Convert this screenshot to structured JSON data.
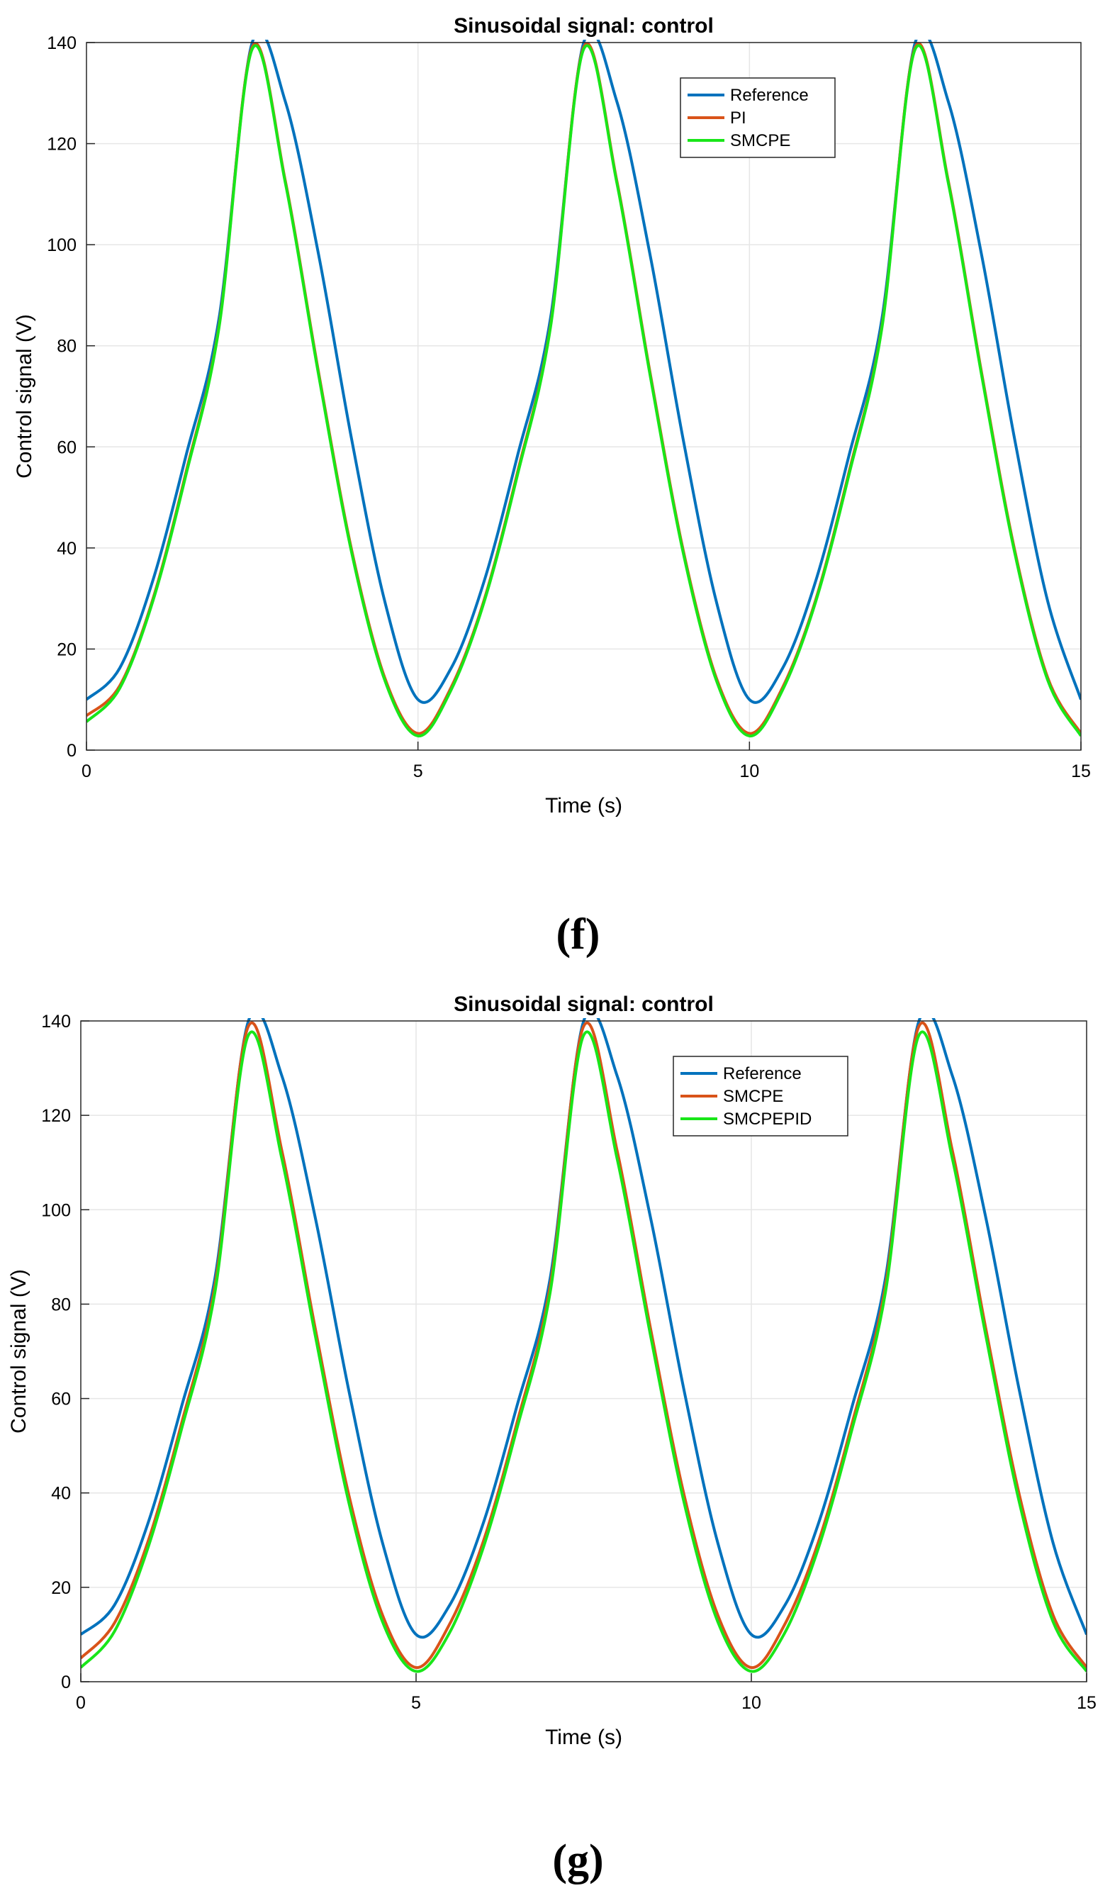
{
  "chart_data": [
    {
      "type": "line",
      "panel": "(f)",
      "title": "Sinusoidal signal: control",
      "xlabel": "Time (s)",
      "ylabel": "Control signal (V)",
      "xlim": [
        0,
        15
      ],
      "ylim": [
        0,
        140
      ],
      "xticks": [
        0,
        5,
        10,
        15
      ],
      "yticks": [
        0,
        20,
        40,
        60,
        80,
        100,
        120,
        140
      ],
      "grid": true,
      "legend_position": "top-right",
      "x": [
        0,
        0.5,
        1,
        1.5,
        2,
        2.5,
        3,
        3.5,
        4,
        4.5,
        5,
        5.5,
        6,
        6.5,
        7,
        7.5,
        8,
        8.5,
        9,
        9.5,
        10,
        10.5,
        11,
        11.5,
        12,
        12.5,
        13,
        13.5,
        14,
        14.5,
        15
      ],
      "series": [
        {
          "name": "Reference",
          "color": "#0072bd",
          "values": [
            10,
            16.2,
            33.5,
            58.2,
            85.5,
            140,
            128.3,
            98.1,
            61.5,
            29.4,
            10,
            16.2,
            33.5,
            58.2,
            85.5,
            140,
            128.3,
            98.1,
            61.5,
            29.4,
            10,
            16.2,
            33.5,
            58.2,
            85.5,
            140,
            128.3,
            98.1,
            61.5,
            29.4,
            10
          ]
        },
        {
          "name": "PI",
          "color": "#d95319",
          "values": [
            6.8,
            12.7,
            29.8,
            54.9,
            84.1,
            139.1,
            112.6,
            74.8,
            39.6,
            14.3,
            3.3,
            12.4,
            29.8,
            54.9,
            84.1,
            139.1,
            112.6,
            74.8,
            39.6,
            14.3,
            3.3,
            12.4,
            29.8,
            54.9,
            84.1,
            139.1,
            112.6,
            74.8,
            39.6,
            14.3,
            3.3
          ]
        },
        {
          "name": "SMCPE",
          "color": "#19e619",
          "values": [
            5.6,
            12.2,
            29.4,
            54.4,
            83.7,
            138.7,
            112.2,
            74.3,
            39.1,
            13.8,
            2.8,
            11.9,
            29.4,
            54.4,
            83.7,
            138.7,
            112.2,
            74.3,
            39.1,
            13.8,
            2.8,
            11.9,
            29.4,
            54.4,
            83.7,
            138.7,
            112.2,
            74.3,
            39.1,
            13.8,
            2.8
          ]
        }
      ]
    },
    {
      "type": "line",
      "panel": "(g)",
      "title": "Sinusoidal signal: control",
      "xlabel": "Time (s)",
      "ylabel": "Control signal (V)",
      "xlim": [
        0,
        15
      ],
      "ylim": [
        0,
        140
      ],
      "xticks": [
        0,
        5,
        10,
        15
      ],
      "yticks": [
        0,
        20,
        40,
        60,
        80,
        100,
        120,
        140
      ],
      "grid": true,
      "legend_position": "top-right",
      "x": [
        0,
        0.5,
        1,
        1.5,
        2,
        2.5,
        3,
        3.5,
        4,
        4.5,
        5,
        5.5,
        6,
        6.5,
        7,
        7.5,
        8,
        8.5,
        9,
        9.5,
        10,
        10.5,
        11,
        11.5,
        12,
        12.5,
        13,
        13.5,
        14,
        14.5,
        15
      ],
      "series": [
        {
          "name": "Reference",
          "color": "#0072bd",
          "values": [
            10,
            16.2,
            33.5,
            58.2,
            85.5,
            140,
            128.3,
            98.1,
            61.5,
            29.4,
            10,
            16.2,
            33.5,
            58.2,
            85.5,
            140,
            128.3,
            98.1,
            61.5,
            29.4,
            10,
            16.2,
            33.5,
            58.2,
            85.5,
            140,
            128.3,
            98.1,
            61.5,
            29.4,
            10
          ]
        },
        {
          "name": "SMCPE",
          "color": "#d95319",
          "values": [
            5,
            12.4,
            29.6,
            54.6,
            83.9,
            138.9,
            112.4,
            74.6,
            39.4,
            14.1,
            3,
            12.2,
            29.6,
            54.6,
            83.9,
            138.9,
            112.4,
            74.6,
            39.4,
            14.1,
            3,
            12.2,
            29.6,
            54.6,
            83.9,
            138.9,
            112.4,
            74.6,
            39.4,
            14.1,
            3
          ]
        },
        {
          "name": "SMCPEPID",
          "color": "#19e619",
          "values": [
            3,
            10.6,
            28.3,
            53.4,
            82.5,
            137,
            110.7,
            73.1,
            37.8,
            12.7,
            2.2,
            10.4,
            28.3,
            53.4,
            82.5,
            137,
            110.7,
            73.1,
            37.8,
            12.7,
            2.2,
            10.4,
            28.3,
            53.4,
            82.5,
            137,
            110.7,
            73.1,
            37.8,
            12.7,
            2.2
          ]
        }
      ]
    }
  ]
}
